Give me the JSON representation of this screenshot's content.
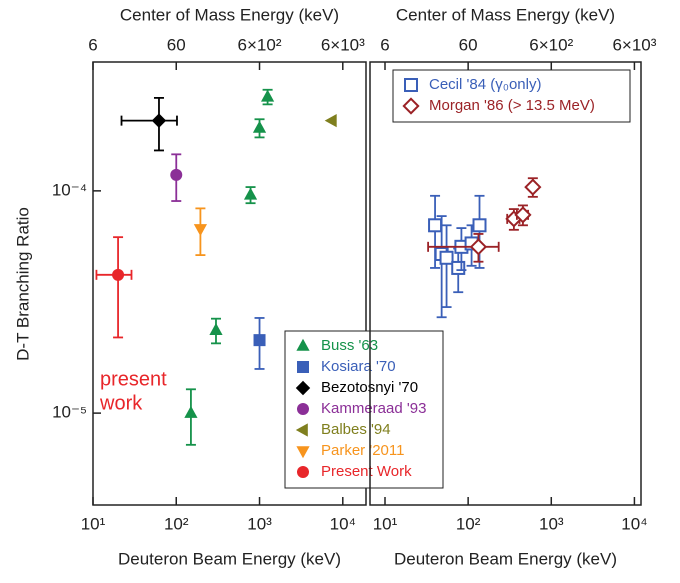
{
  "chart_data": [
    {
      "type": "scatter",
      "log_x": true,
      "log_y": true,
      "xlabel": "Deuteron Beam Energy (keV)",
      "x2label": "Center of Mass Energy (keV)",
      "ylabel": "D-T Branching Ratio",
      "xlim": [
        10,
        19000
      ],
      "x2lim": [
        6,
        11400
      ],
      "ylim": [
        3.86e-06,
        0.00038
      ],
      "xticks": [
        {
          "value": 10,
          "label": "10¹"
        },
        {
          "value": 100,
          "label": "10²"
        },
        {
          "value": 1000,
          "label": "10³"
        },
        {
          "value": 10000,
          "label": "10⁴"
        }
      ],
      "x2ticks": [
        6,
        60,
        {
          "value": 600,
          "label": "6×10²"
        },
        {
          "value": 6000,
          "label": "6×10³"
        }
      ],
      "yticks": [
        {
          "value": 1e-05,
          "label": "10⁻⁵"
        },
        {
          "value": 0.0001,
          "label": "10⁻⁴"
        }
      ],
      "annotation": [
        "present",
        "work"
      ],
      "legend": "lower right",
      "series": [
        {
          "name": "Buss '63",
          "color": "#15924a",
          "marker": "triangle-up",
          "x": [
            1250,
            1000,
            780,
            300,
            150
          ],
          "values": [
            0.000265,
            0.000192,
            9.6e-05,
            2.36e-05,
            1e-05
          ],
          "errors": [
            2e-05,
            1.8e-05,
            8e-06,
            3e-06,
            2.8e-06
          ]
        },
        {
          "name": "Kosiara '70",
          "color": "#3a5fb8",
          "marker": "square",
          "x": [
            1000
          ],
          "values": [
            2.13e-05
          ],
          "errors": [
            5.5e-06
          ]
        },
        {
          "name": "Bezotosnyi '70",
          "color": "#000000",
          "marker": "diamond",
          "x": [
            62
          ],
          "values": [
            0.000207
          ],
          "errors": [
            5.5e-05
          ],
          "xerrors": [
            40
          ]
        },
        {
          "name": "Kammeraad '93",
          "color": "#8b2f97",
          "marker": "circle",
          "x": [
            100
          ],
          "values": [
            0.000118
          ],
          "errors": [
            2.8e-05
          ]
        },
        {
          "name": "Balbes '94",
          "color": "#7f7f1e",
          "marker": "triangle-left",
          "x": [
            7400
          ],
          "values": [
            0.000207
          ]
        },
        {
          "name": "Parker '2011",
          "color": "#f7941d",
          "marker": "triangle-down",
          "x": [
            195
          ],
          "values": [
            6.74e-05
          ],
          "errors": [
            1.6e-05
          ]
        },
        {
          "name": "Present Work",
          "color": "#e8262a",
          "marker": "circle",
          "x": [
            20
          ],
          "values": [
            4.19e-05
          ],
          "errors": [
            2e-05
          ],
          "xerrors": [
            9
          ]
        }
      ]
    },
    {
      "type": "scatter",
      "log_x": true,
      "log_y": true,
      "xlabel": "Deuteron Beam Energy (keV)",
      "x2label": "Center of Mass Energy (keV)",
      "xlim": [
        6.6,
        12000
      ],
      "x2lim": [
        3.96,
        7200
      ],
      "ylim": [
        3.86e-06,
        0.00038
      ],
      "xticks": [
        {
          "value": 10,
          "label": "10¹"
        },
        {
          "value": 100,
          "label": "10²"
        },
        {
          "value": 1000,
          "label": "10³"
        },
        {
          "value": 10000,
          "label": "10⁴"
        }
      ],
      "x2ticks": [
        6,
        60,
        {
          "value": 600,
          "label": "6×10²"
        },
        {
          "value": 6000,
          "label": "6×10³"
        }
      ],
      "legend": "upper left",
      "series": [
        {
          "name": "Cecil '84 (γ₀only)",
          "color": "#3a5fb8",
          "marker": "open-square",
          "x": [
            40,
            48,
            55,
            76,
            83,
            110,
            137
          ],
          "values": [
            7e-05,
            5.2e-05,
            5e-05,
            4.5e-05,
            5.6e-05,
            5.8e-05,
            7e-05
          ],
          "errors": [
            2.5e-05,
            2.5e-05,
            2e-05,
            1e-05,
            1.2e-05,
            1.2e-05,
            2.5e-05
          ]
        },
        {
          "name": "Morgan '86 (> 13.5 MeV)",
          "color": "#9b2226",
          "marker": "open-diamond",
          "x": [
            133,
            355,
            456,
            600
          ],
          "values": [
            5.6e-05,
            7.48e-05,
            7.8e-05,
            0.000104
          ],
          "errors": [
            8e-06,
            8e-06,
            8e-06,
            1e-05
          ],
          "xerrors": [
            100,
            60,
            70,
            30
          ]
        }
      ]
    }
  ]
}
